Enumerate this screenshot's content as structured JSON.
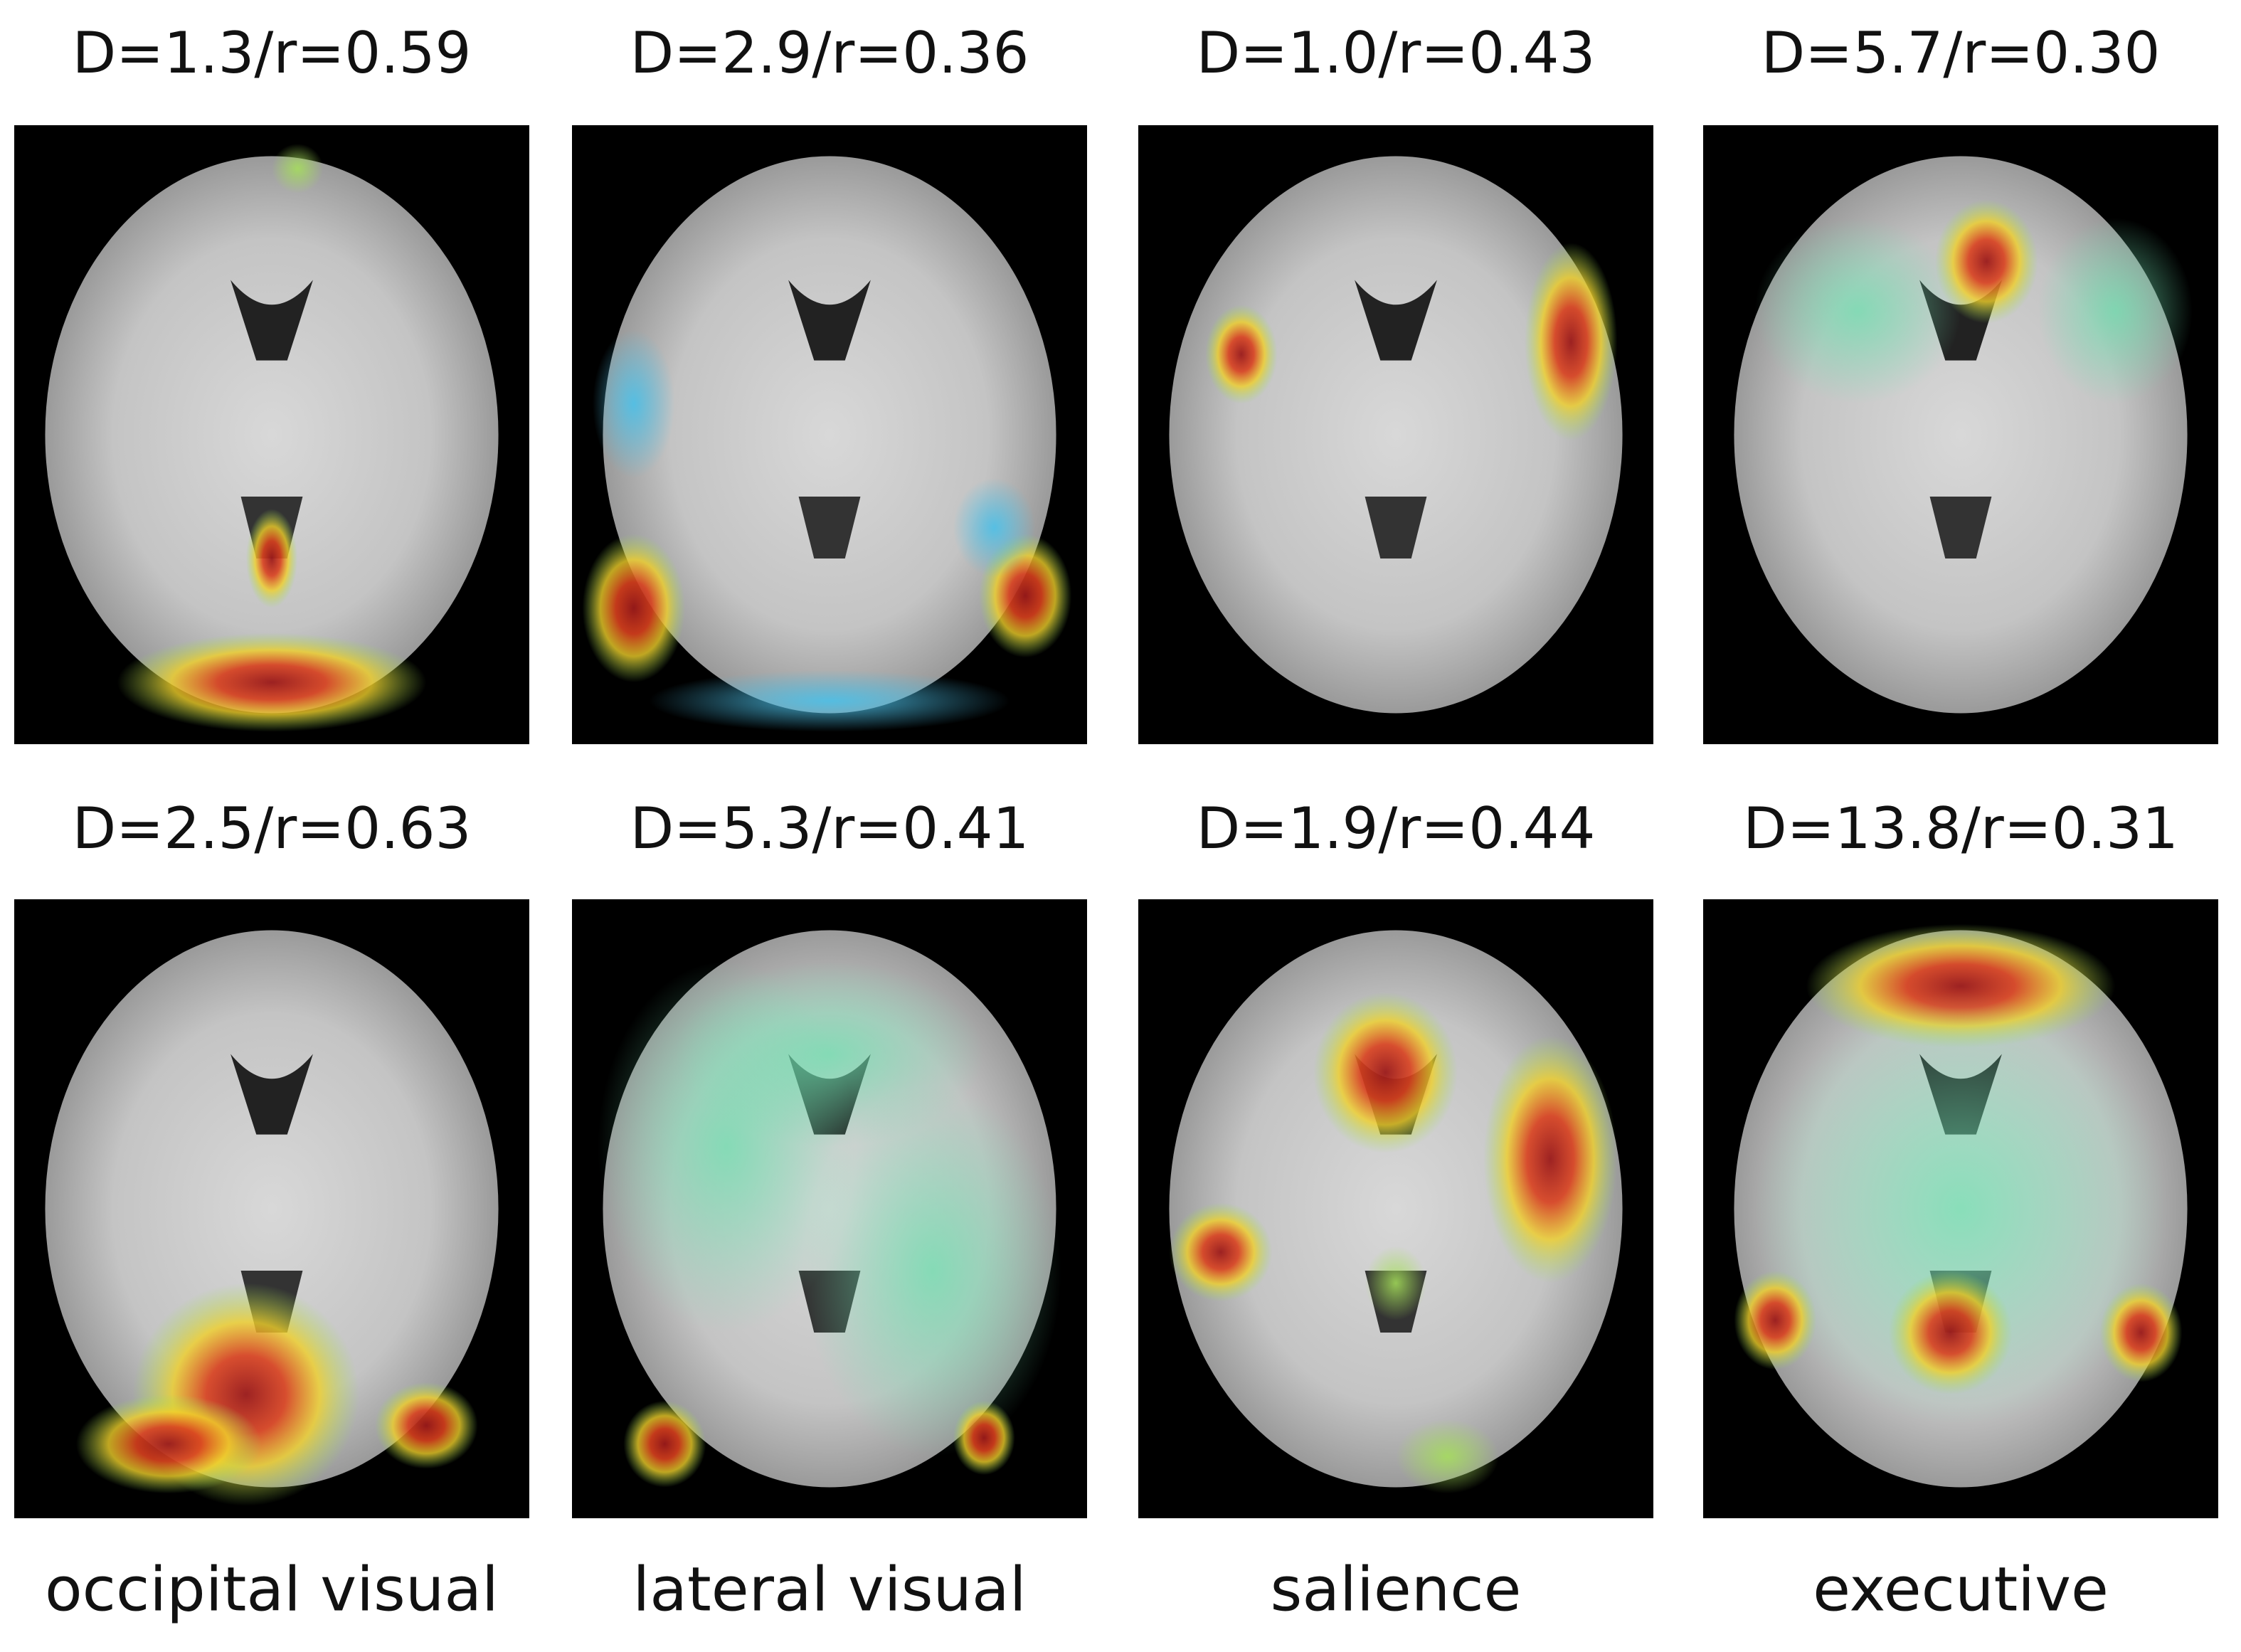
{
  "panels": [
    {
      "title": "D=1.3/r=0.59"
    },
    {
      "title": "D=2.9/r=0.36"
    },
    {
      "title": "D=1.0/r=0.43"
    },
    {
      "title": "D=5.7/r=0.30"
    },
    {
      "title": "D=2.5/r=0.63"
    },
    {
      "title": "D=5.3/r=0.41"
    },
    {
      "title": "D=1.9/r=0.44"
    },
    {
      "title": "D=13.8/r=0.31"
    }
  ],
  "column_labels": [
    "occipital visual",
    "lateral visual",
    "salience",
    "executive"
  ]
}
